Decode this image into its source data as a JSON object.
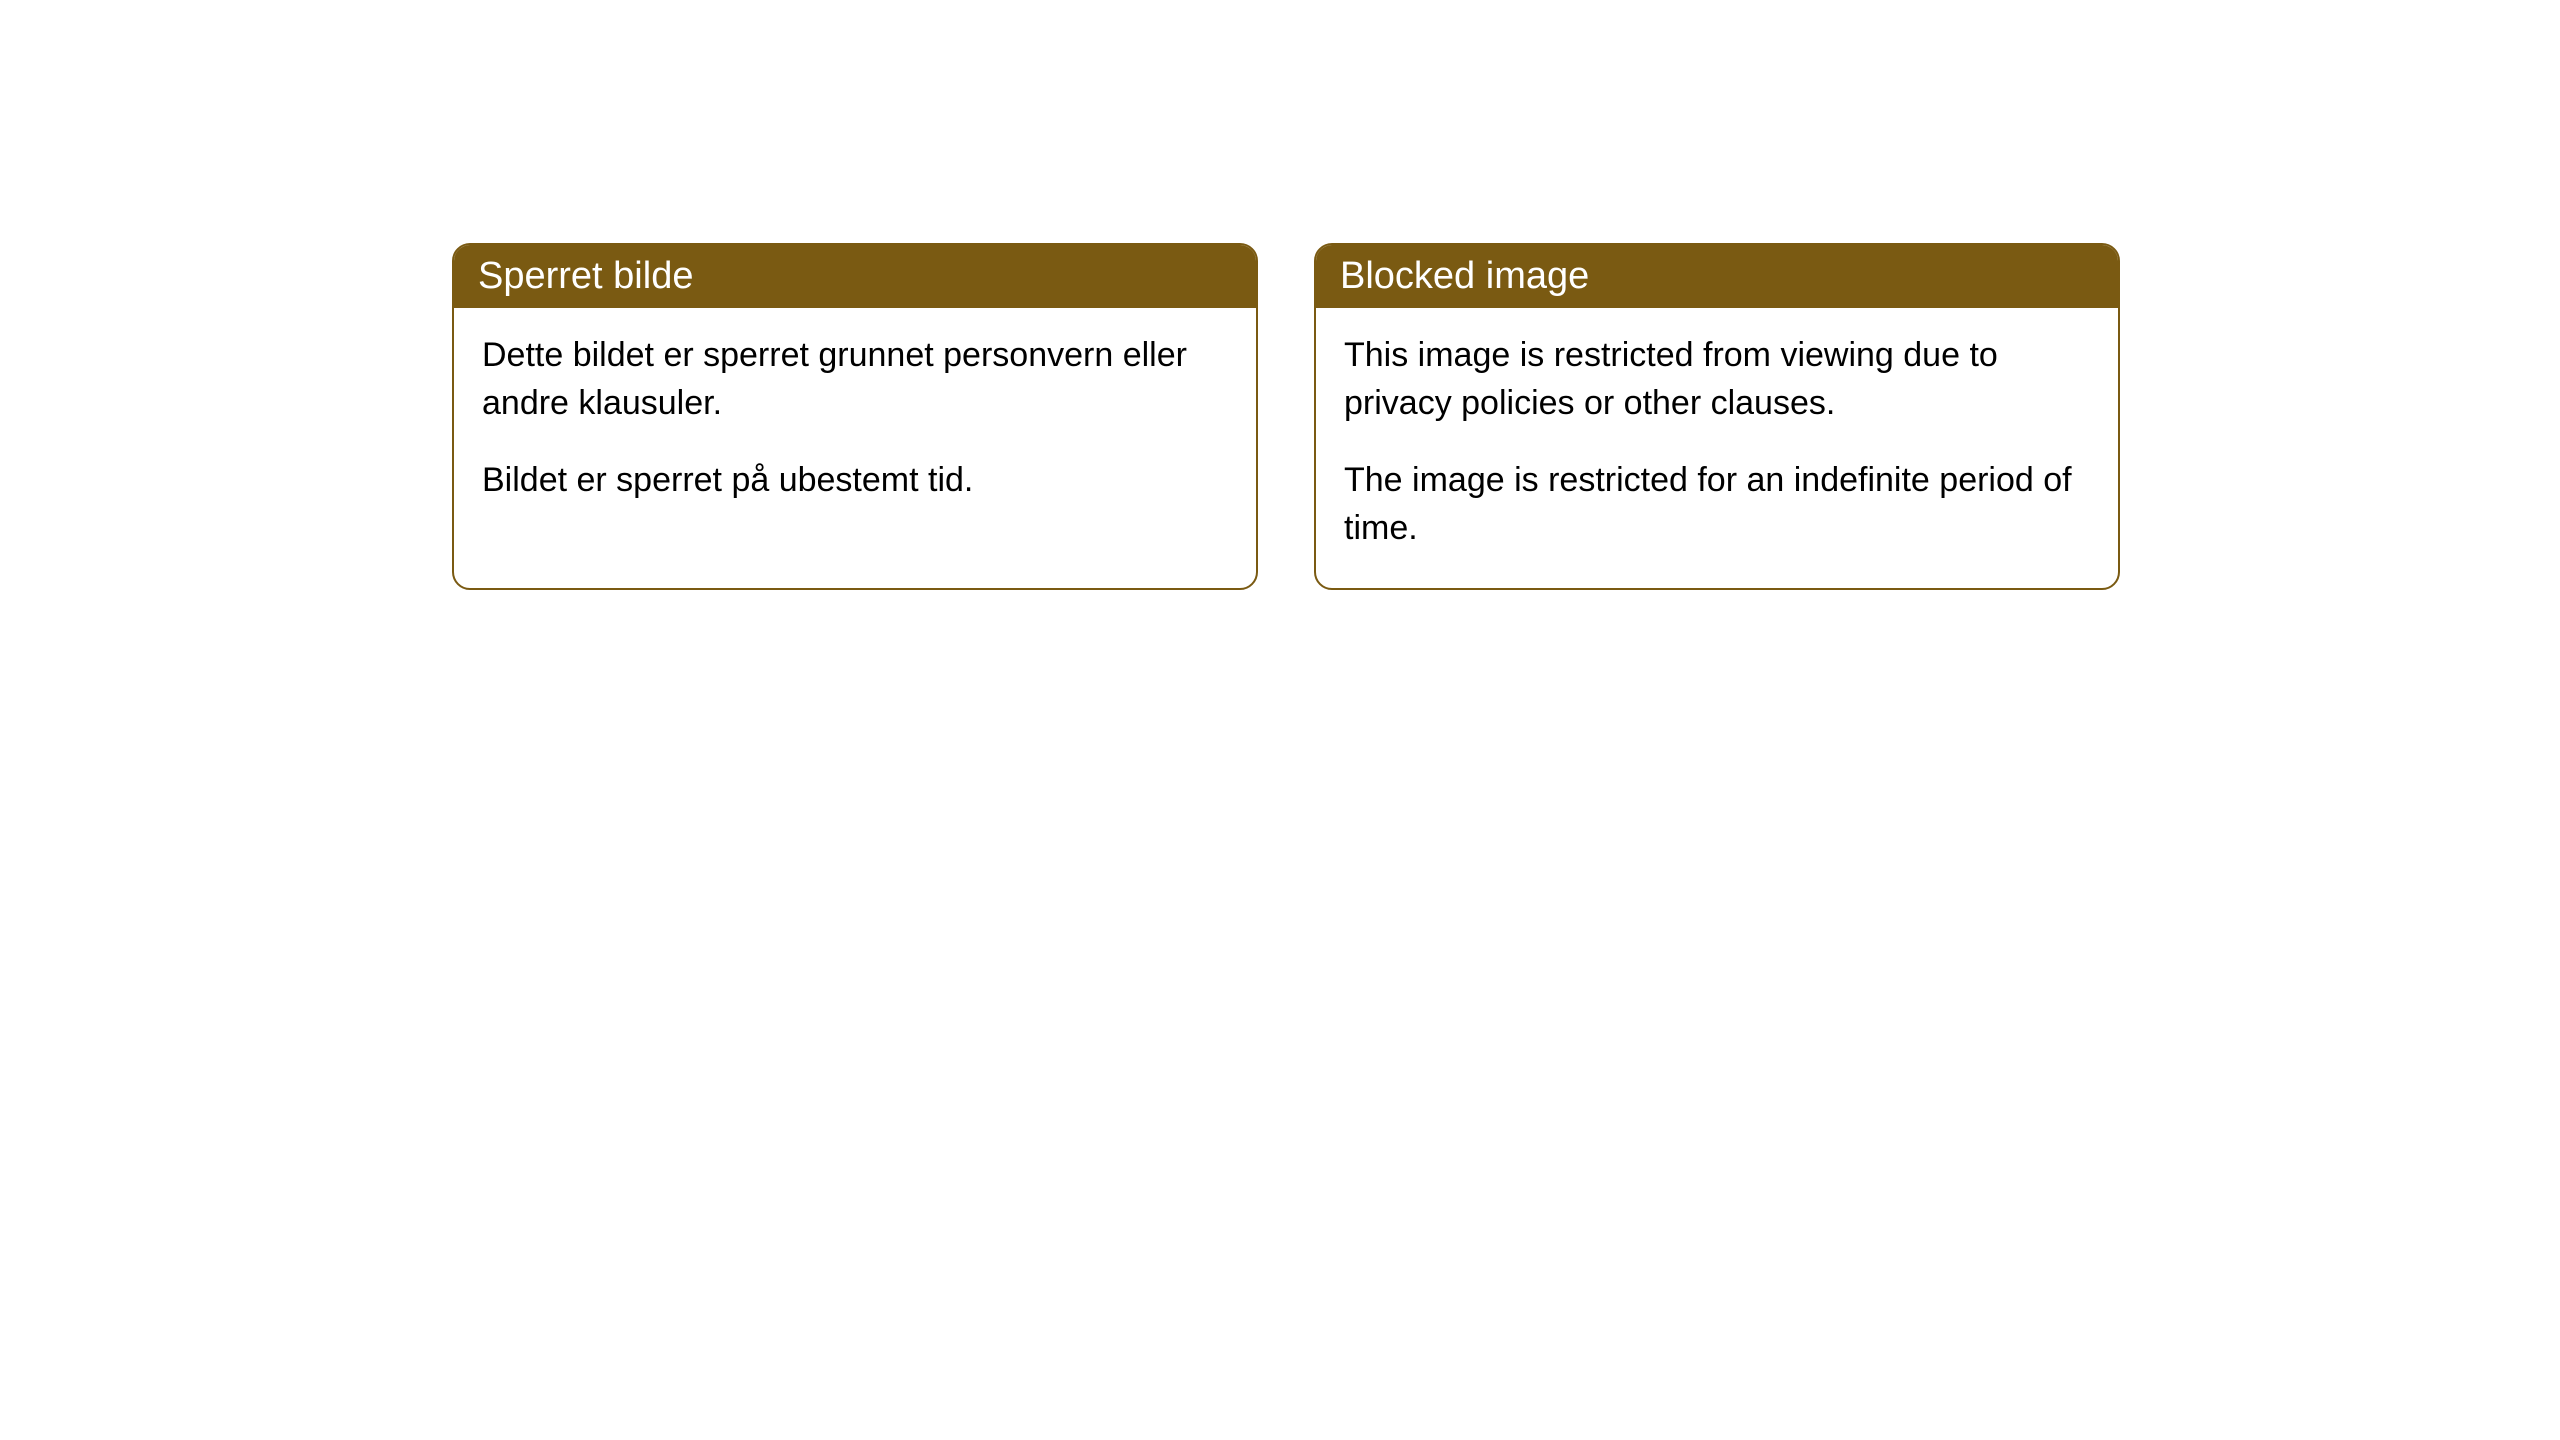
{
  "cards": [
    {
      "title": "Sperret bilde",
      "paragraph1": "Dette bildet er sperret grunnet personvern eller andre klausuler.",
      "paragraph2": "Bildet er sperret på ubestemt tid."
    },
    {
      "title": "Blocked image",
      "paragraph1": "This image is restricted from viewing due to privacy policies or other clauses.",
      "paragraph2": "The image is restricted for an indefinite period of time."
    }
  ],
  "styling": {
    "header_bg_color": "#7a5a12",
    "header_text_color": "#ffffff",
    "border_color": "#7a5a12",
    "body_text_color": "#000000",
    "background_color": "#ffffff",
    "border_radius": 18,
    "header_fontsize": 38,
    "body_fontsize": 34
  }
}
